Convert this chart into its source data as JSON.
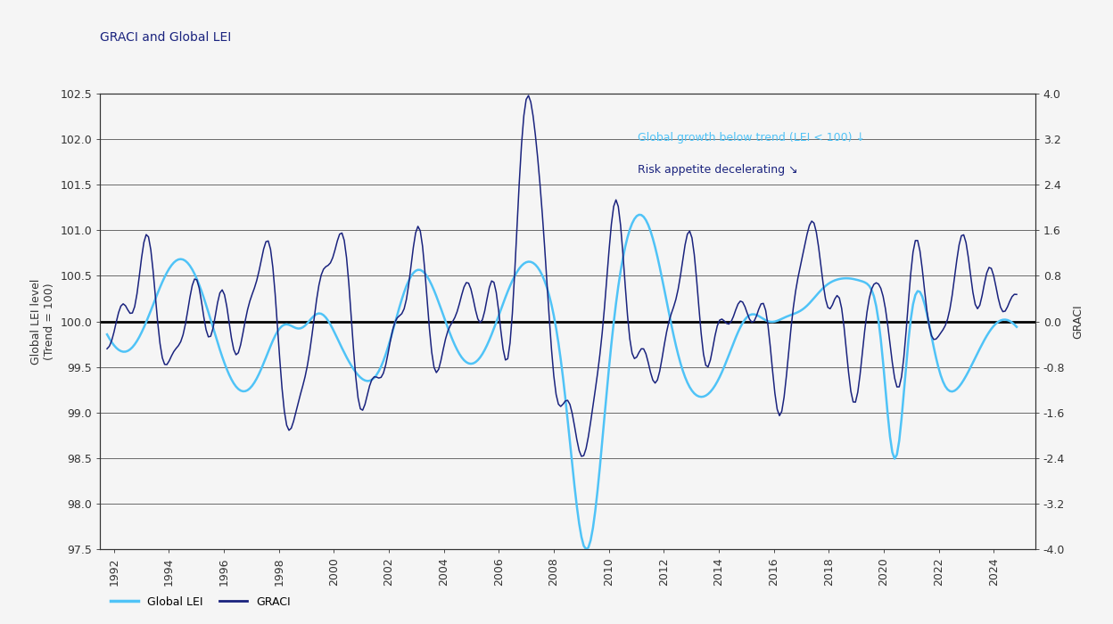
{
  "title": "GRACI and Global LEI",
  "ylabel_left": "Global LEI level\n(Trend = 100)",
  "ylabel_right": "GRACI",
  "ylim_left": [
    97.5,
    102.5
  ],
  "ylim_right": [
    -4.0,
    4.0
  ],
  "yticks_left": [
    97.5,
    98.0,
    98.5,
    99.0,
    99.5,
    100.0,
    100.5,
    101.0,
    101.5,
    102.0,
    102.5
  ],
  "yticks_right": [
    -4.0,
    -3.2,
    -2.4,
    -1.6,
    -0.8,
    0.0,
    0.8,
    1.6,
    2.4,
    3.2,
    4.0
  ],
  "xtick_years": [
    1992,
    1994,
    1996,
    1998,
    2000,
    2002,
    2004,
    2006,
    2008,
    2010,
    2012,
    2014,
    2016,
    2018,
    2020,
    2022,
    2024
  ],
  "xlim": [
    1991.5,
    2025.5
  ],
  "lei_color": "#4FC3F7",
  "graci_color": "#1A237E",
  "zero_line_color": "#000000",
  "annotation1": "Global growth below trend (LEI < 100) ↓",
  "annotation2": "Risk appetite decelerating ↘",
  "annotation1_color": "#4FC3F7",
  "annotation2_color": "#1A237E",
  "legend_lei": "Global LEI",
  "legend_graci": "GRACI",
  "background_color": "#F5F5F5",
  "title_fontsize": 10,
  "axis_label_fontsize": 9,
  "tick_fontsize": 9,
  "annotation_fontsize": 9
}
